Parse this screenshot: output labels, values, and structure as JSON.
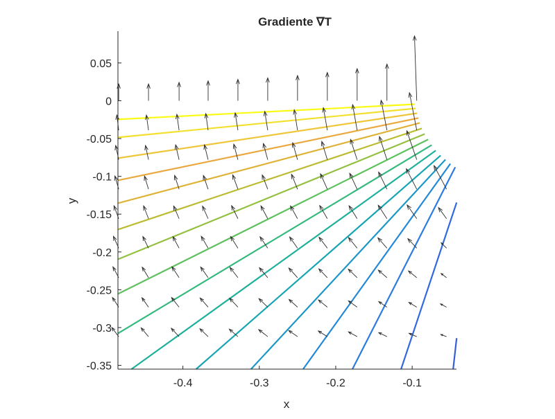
{
  "chart_data": {
    "type": "contour+quiver",
    "title": "Gradiente ∇T",
    "xlabel": "x",
    "ylabel": "y",
    "xlim": [
      -0.485,
      -0.042
    ],
    "ylim": [
      -0.355,
      0.092
    ],
    "xticks": [
      -0.4,
      -0.3,
      -0.2,
      -0.1
    ],
    "xtick_labels": [
      "-0.4",
      "-0.3",
      "-0.2",
      "-0.1"
    ],
    "yticks": [
      0.05,
      0,
      -0.05,
      -0.1,
      -0.15,
      -0.2,
      -0.25,
      -0.3,
      -0.35
    ],
    "ytick_labels": [
      "0.05",
      "0",
      "-0.05",
      "-0.1",
      "-0.15",
      "-0.2",
      "-0.25",
      "-0.3",
      "-0.35"
    ],
    "grid": false,
    "arrow_color": "#2b2b2b",
    "contours": [
      {
        "color": "#f9fb15",
        "points": [
          [
            -0.485,
            -0.0247
          ],
          [
            -0.0964,
            -0.0046
          ]
        ]
      },
      {
        "color": "#f3e02c",
        "points": [
          [
            -0.485,
            -0.0485
          ],
          [
            -0.0955,
            -0.0101
          ]
        ]
      },
      {
        "color": "#efc63a",
        "points": [
          [
            -0.485,
            -0.076
          ],
          [
            -0.0936,
            -0.0165
          ]
        ]
      },
      {
        "color": "#eaa93e",
        "points": [
          [
            -0.485,
            -0.1053
          ],
          [
            -0.0918,
            -0.0229
          ]
        ]
      },
      {
        "color": "#dfb236",
        "points": [
          [
            -0.485,
            -0.1355
          ],
          [
            -0.09,
            -0.0293
          ]
        ]
      },
      {
        "color": "#bcbc30",
        "points": [
          [
            -0.485,
            -0.1703
          ],
          [
            -0.0873,
            -0.0366
          ]
        ]
      },
      {
        "color": "#94c040",
        "points": [
          [
            -0.485,
            -0.2097
          ],
          [
            -0.0836,
            -0.044
          ]
        ]
      },
      {
        "color": "#5fc05e",
        "points": [
          [
            -0.485,
            -0.2555
          ],
          [
            -0.0791,
            -0.0513
          ]
        ]
      },
      {
        "color": "#33b97e",
        "points": [
          [
            -0.485,
            -0.3077
          ],
          [
            -0.0745,
            -0.0586
          ]
        ]
      },
      {
        "color": "#1fb09c",
        "points": [
          [
            -0.4673,
            -0.355
          ],
          [
            -0.0691,
            -0.0659
          ]
        ]
      },
      {
        "color": "#17a5b3",
        "points": [
          [
            -0.3827,
            -0.355
          ],
          [
            -0.0627,
            -0.0723
          ]
        ]
      },
      {
        "color": "#1a97c6",
        "points": [
          [
            -0.3109,
            -0.355
          ],
          [
            -0.0564,
            -0.0778
          ]
        ]
      },
      {
        "color": "#2389d6",
        "points": [
          [
            -0.2427,
            -0.355
          ],
          [
            -0.05,
            -0.0833
          ]
        ]
      },
      {
        "color": "#2b7be0",
        "points": [
          [
            -0.1782,
            -0.355
          ],
          [
            -0.0436,
            -0.0879
          ]
        ]
      },
      {
        "color": "#316ade",
        "points": [
          [
            -0.1145,
            -0.355
          ],
          [
            -0.0418,
            -0.1346
          ]
        ]
      },
      {
        "color": "#375ed8",
        "points": [
          [
            -0.0464,
            -0.355
          ],
          [
            -0.0418,
            -0.3141
          ]
        ]
      }
    ],
    "quiver": {
      "columns_x": [
        -0.484,
        -0.445,
        -0.405,
        -0.367,
        -0.328,
        -0.289,
        -0.25,
        -0.211,
        -0.172,
        -0.133,
        -0.094,
        -0.055
      ],
      "rows": [
        {
          "y": 0.0,
          "angle_deg": [
            90,
            90,
            90,
            90,
            90,
            90,
            90,
            90,
            90,
            90,
            92,
            null
          ],
          "magnitude": [
            0.022,
            0.022,
            0.024,
            0.026,
            0.028,
            0.03,
            0.033,
            0.037,
            0.042,
            0.048,
            0.085,
            null
          ]
        },
        {
          "y": -0.039,
          "angle_deg": [
            97,
            98,
            98,
            98,
            99,
            99,
            99,
            100,
            100,
            101,
            101,
            null
          ],
          "magnitude": [
            0.02,
            0.02,
            0.021,
            0.022,
            0.023,
            0.025,
            0.027,
            0.03,
            0.034,
            0.04,
            0.05,
            null
          ]
        },
        {
          "y": -0.078,
          "angle_deg": [
            102,
            102,
            103,
            104,
            105,
            105,
            106,
            107,
            108,
            108,
            109,
            null
          ],
          "magnitude": [
            0.019,
            0.019,
            0.02,
            0.02,
            0.021,
            0.022,
            0.023,
            0.025,
            0.028,
            0.032,
            0.04,
            null
          ]
        },
        {
          "y": -0.117,
          "angle_deg": [
            106,
            107,
            108,
            109,
            110,
            111,
            112,
            114,
            115,
            116,
            117,
            118
          ],
          "magnitude": [
            0.018,
            0.018,
            0.019,
            0.019,
            0.02,
            0.02,
            0.021,
            0.022,
            0.023,
            0.025,
            0.03,
            0.035
          ]
        },
        {
          "y": -0.156,
          "angle_deg": [
            110,
            111,
            113,
            114,
            116,
            118,
            119,
            120,
            122,
            123,
            125,
            126
          ],
          "magnitude": [
            0.018,
            0.018,
            0.018,
            0.018,
            0.019,
            0.019,
            0.019,
            0.02,
            0.02,
            0.021,
            0.022,
            0.018
          ]
        },
        {
          "y": -0.195,
          "angle_deg": [
            114,
            116,
            118,
            120,
            122,
            124,
            125,
            127,
            129,
            131,
            133,
            135
          ],
          "magnitude": [
            0.017,
            0.017,
            0.017,
            0.018,
            0.018,
            0.018,
            0.018,
            0.018,
            0.018,
            0.018,
            0.017,
            0.01
          ]
        },
        {
          "y": -0.234,
          "angle_deg": [
            118,
            121,
            123,
            125,
            128,
            130,
            132,
            134,
            136,
            139,
            141,
            143
          ],
          "magnitude": [
            0.016,
            0.016,
            0.017,
            0.017,
            0.017,
            0.017,
            0.017,
            0.016,
            0.016,
            0.015,
            0.014,
            0.009
          ]
        },
        {
          "y": -0.273,
          "angle_deg": [
            123,
            125,
            128,
            131,
            133,
            136,
            138,
            141,
            144,
            146,
            149,
            152
          ],
          "magnitude": [
            0.015,
            0.015,
            0.016,
            0.016,
            0.016,
            0.016,
            0.015,
            0.015,
            0.014,
            0.013,
            0.012,
            0.009
          ]
        },
        {
          "y": -0.312,
          "angle_deg": [
            127,
            130,
            133,
            136,
            139,
            142,
            145,
            148,
            151,
            154,
            157,
            160
          ],
          "magnitude": [
            0.015,
            0.015,
            0.015,
            0.015,
            0.015,
            0.015,
            0.014,
            0.014,
            0.013,
            0.012,
            0.011,
            0.008
          ]
        }
      ]
    }
  }
}
